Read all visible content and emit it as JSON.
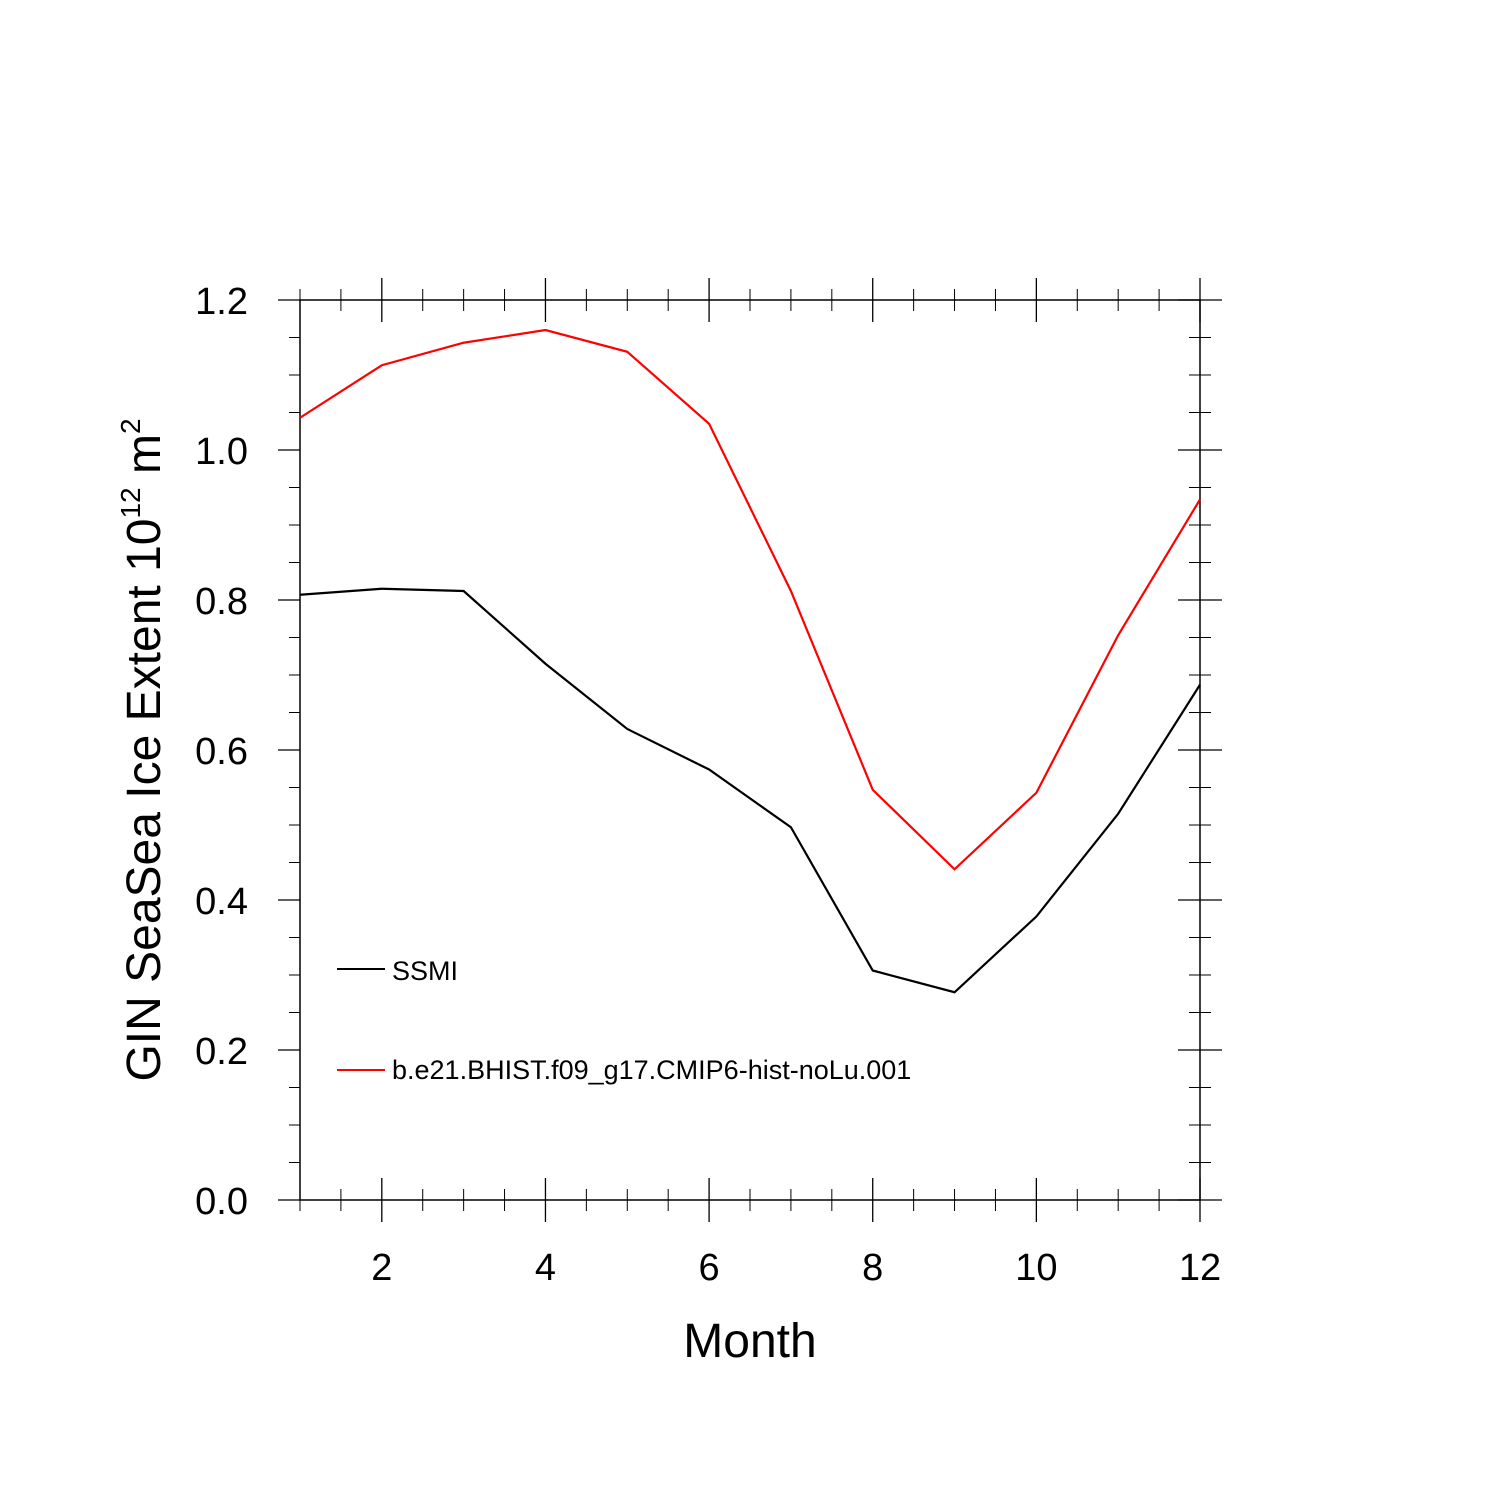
{
  "chart_data": {
    "type": "line",
    "title": "",
    "xlabel": "Month",
    "ylabel": {
      "text": "GIN SeaSea Ice Extent 10",
      "exponent": "12",
      "unit": " m",
      "unit_exponent": "2"
    },
    "xlim": [
      1,
      12
    ],
    "ylim": [
      0.0,
      1.2
    ],
    "xticks": [
      2,
      4,
      6,
      8,
      10,
      12
    ],
    "xtick_labels": [
      "2",
      "4",
      "6",
      "8",
      "10",
      "12"
    ],
    "yticks": [
      0.0,
      0.2,
      0.4,
      0.6,
      0.8,
      1.0,
      1.2
    ],
    "ytick_labels": [
      "0.0",
      "0.2",
      "0.4",
      "0.6",
      "0.8",
      "1.0",
      "1.2"
    ],
    "grid": false,
    "legend_position": "lower-left",
    "x": [
      1,
      2,
      3,
      4,
      5,
      6,
      7,
      8,
      9,
      10,
      11,
      12
    ],
    "series": [
      {
        "name": "SSMI",
        "color": "#000000",
        "values": [
          0.807,
          0.815,
          0.812,
          0.715,
          0.628,
          0.574,
          0.497,
          0.306,
          0.277,
          0.378,
          0.515,
          0.687
        ]
      },
      {
        "name": "b.e21.BHIST.f09_g17.CMIP6-hist-noLu.001",
        "color": "#ff0000",
        "values": [
          1.043,
          1.113,
          1.143,
          1.16,
          1.131,
          1.035,
          0.812,
          0.547,
          0.441,
          0.543,
          0.753,
          0.934
        ]
      }
    ]
  }
}
